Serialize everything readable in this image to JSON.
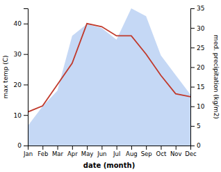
{
  "chart_data": {
    "type": "line",
    "xlabel": "date (month)",
    "ylabel": "max temp (C)",
    "y2label": "med. precipitation (kg/m2)",
    "categories": [
      "Jan",
      "Feb",
      "Mar",
      "Apr",
      "May",
      "Jun",
      "Jul",
      "Aug",
      "Sep",
      "Oct",
      "Nov",
      "Dec"
    ],
    "series": [
      {
        "type": "area",
        "axis": "y2",
        "color": "#c5d8f5",
        "values": [
          5,
          10,
          14,
          28,
          31,
          30,
          27,
          35,
          33,
          23,
          18,
          13
        ]
      },
      {
        "type": "line",
        "color": "#c0392b",
        "values": [
          11,
          13,
          20,
          27,
          40,
          39,
          36,
          36,
          30,
          23,
          17,
          16
        ]
      }
    ],
    "ylim": [
      0,
      45
    ],
    "yticks": [
      0,
      10,
      20,
      30,
      40
    ],
    "y2lim": [
      0,
      35
    ],
    "y2ticks": [
      0,
      5,
      10,
      15,
      20,
      25,
      30,
      35
    ]
  }
}
